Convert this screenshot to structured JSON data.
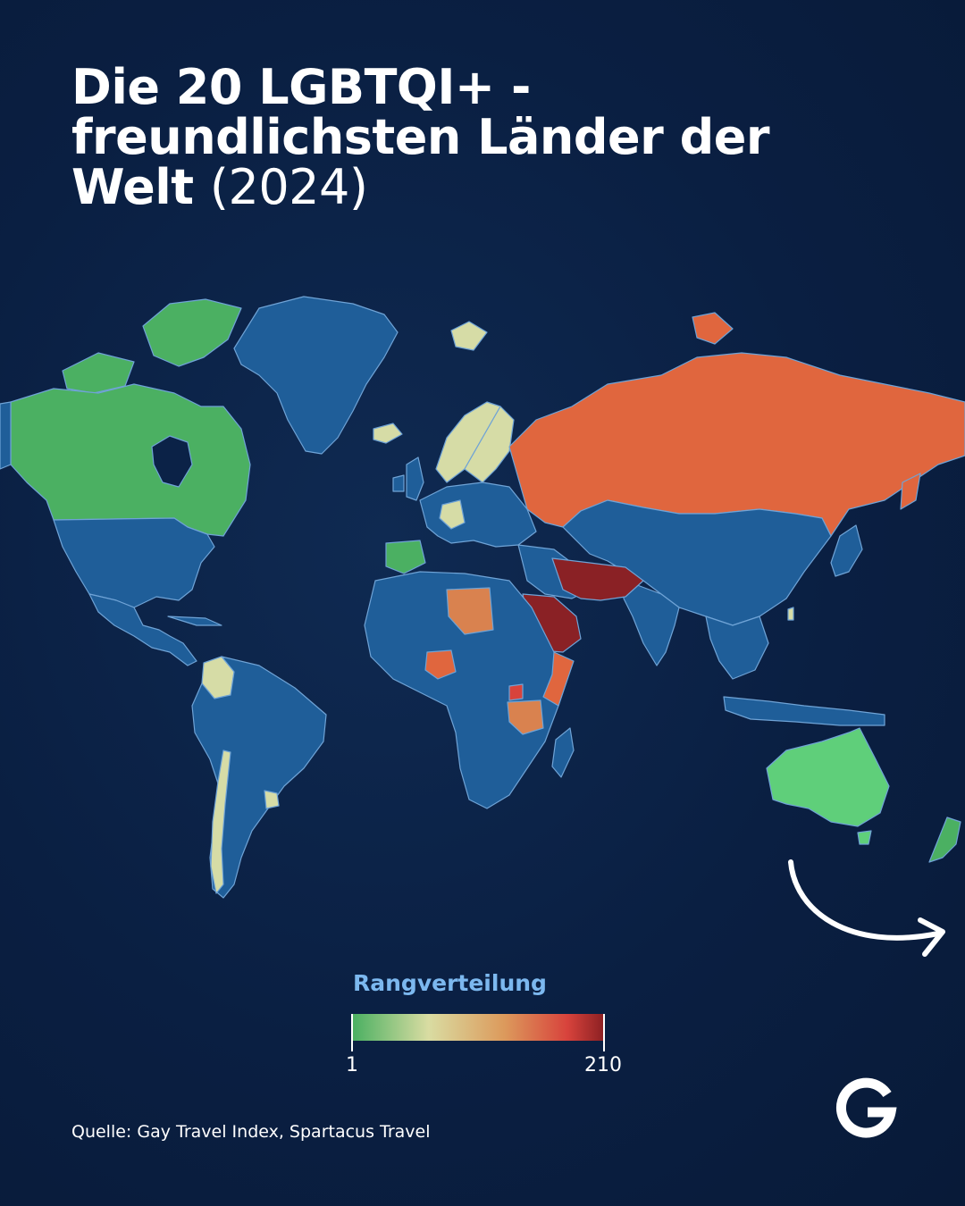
{
  "title": {
    "line1": "Die 20 LGBTQI+ -",
    "line2": "freundlichsten Länder der",
    "line3_bold": "Welt",
    "line3_year": "(2024)"
  },
  "legend": {
    "title": "Rangverteilung",
    "min_label": "1",
    "max_label": "210",
    "gradient_colors": [
      "#4bb062",
      "#d9dca2",
      "#dc9a5c",
      "#d8433c",
      "#8a1f22"
    ]
  },
  "source": "Quelle: Gay Travel Index, Spartacus Travel",
  "logo_letter": "G",
  "colors": {
    "background": "#0a1f42",
    "land_default": "#1f5e99",
    "border": "#6fa3d6",
    "rank_top": "#5fcf7a",
    "rank_good": "#4bb062",
    "rank_light": "#d6dca6",
    "rank_mid": "#d9824f",
    "rank_high": "#e0663e",
    "rank_worst": "#8a2125"
  }
}
